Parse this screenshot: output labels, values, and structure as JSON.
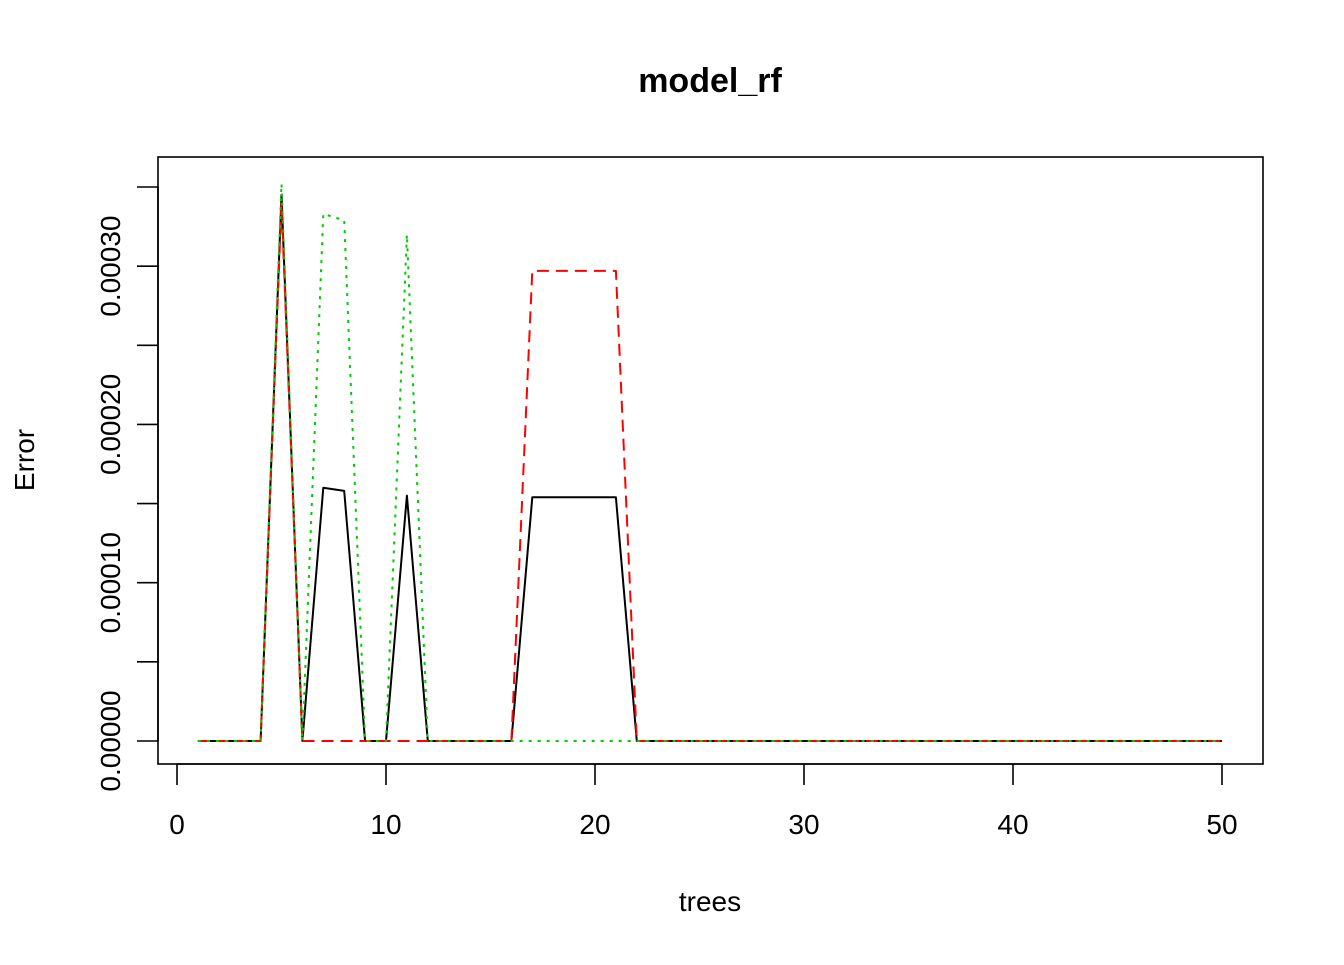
{
  "chart_data": {
    "type": "line",
    "title": "model_rf",
    "xlabel": "trees",
    "ylabel": "Error",
    "xlim": [
      0,
      50
    ],
    "ylim": [
      0,
      0.00035
    ],
    "x_ticks": [
      0,
      10,
      20,
      30,
      40,
      50
    ],
    "y_ticks": [
      0,
      5e-05,
      0.0001,
      0.00015,
      0.0002,
      0.00025,
      0.0003,
      0.00035
    ],
    "y_tick_labels": [
      "0.00000",
      "",
      "0.00010",
      "",
      "0.00020",
      "",
      "0.00030",
      ""
    ],
    "grid": false,
    "legend": "none",
    "x": [
      1,
      2,
      3,
      4,
      5,
      6,
      7,
      8,
      9,
      10,
      11,
      12,
      13,
      14,
      15,
      16,
      17,
      18,
      19,
      20,
      21,
      22,
      23,
      24,
      25,
      26,
      27,
      28,
      29,
      30,
      31,
      32,
      33,
      34,
      35,
      36,
      37,
      38,
      39,
      40,
      41,
      42,
      43,
      44,
      45,
      46,
      47,
      48,
      49,
      50
    ],
    "series": [
      {
        "color": "#000000",
        "dash": "solid",
        "values": [
          0,
          0,
          0,
          0,
          0.000345,
          0,
          0.00016,
          0.000158,
          0,
          0,
          0.000155,
          0,
          0,
          0,
          0,
          0,
          0.000154,
          0.000154,
          0.000154,
          0.000154,
          0.000154,
          0,
          0,
          0,
          0,
          0,
          0,
          0,
          0,
          0,
          0,
          0,
          0,
          0,
          0,
          0,
          0,
          0,
          0,
          0,
          0,
          0,
          0,
          0,
          0,
          0,
          0,
          0,
          0,
          0
        ]
      },
      {
        "color": "#ff0000",
        "dash": "dashed",
        "values": [
          0,
          0,
          0,
          0,
          0.00034,
          0,
          0,
          0,
          0,
          0,
          0,
          0,
          0,
          0,
          0,
          0,
          0.000297,
          0.000297,
          0.000297,
          0.000297,
          0.000297,
          0,
          0,
          0,
          0,
          0,
          0,
          0,
          0,
          0,
          0,
          0,
          0,
          0,
          0,
          0,
          0,
          0,
          0,
          0,
          0,
          0,
          0,
          0,
          0,
          0,
          0,
          0,
          0,
          0
        ]
      },
      {
        "color": "#00cc00",
        "dash": "dotted",
        "values": [
          0,
          0,
          0,
          0,
          0.000352,
          0,
          0.000333,
          0.000329,
          0,
          0,
          0.00032,
          0,
          0,
          0,
          0,
          0,
          0,
          0,
          0,
          0,
          0,
          0,
          0,
          0,
          0,
          0,
          0,
          0,
          0,
          0,
          0,
          0,
          0,
          0,
          0,
          0,
          0,
          0,
          0,
          0,
          0,
          0,
          0,
          0,
          0,
          0,
          0,
          0,
          0,
          0
        ]
      }
    ]
  }
}
